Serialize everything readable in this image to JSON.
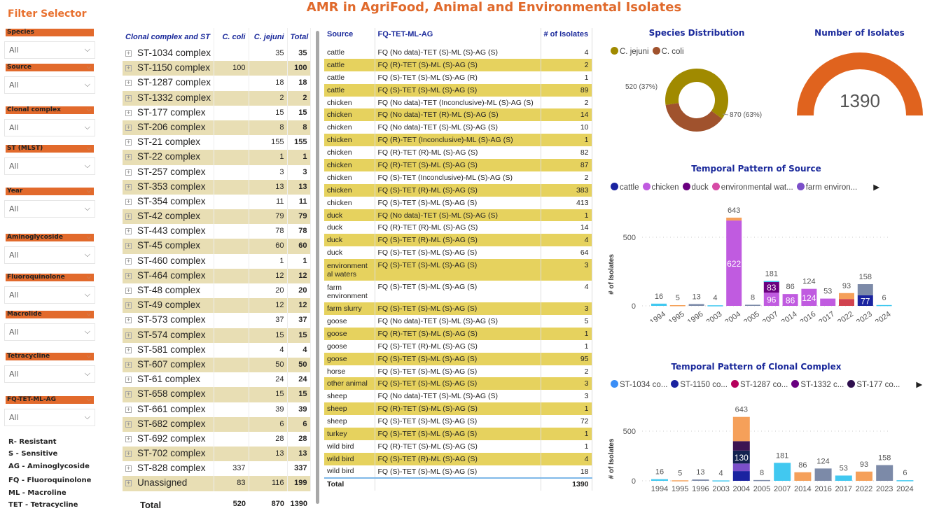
{
  "title": "AMR in AgriFood, Animal and Environmental Isolates",
  "filters": {
    "title": "Filter Selector",
    "items": [
      {
        "label": "Species",
        "value": "All"
      },
      {
        "label": "Source",
        "value": "All"
      },
      {
        "label": "Clonal complex",
        "value": "All"
      },
      {
        "label": "ST (MLST)",
        "value": "All"
      },
      {
        "label": "Year",
        "value": "All"
      },
      {
        "label": "Aminoglycoside",
        "value": "All"
      },
      {
        "label": "Fluoroquinolone",
        "value": "All"
      },
      {
        "label": "Macrolide",
        "value": "All"
      },
      {
        "label": "Tetracycline",
        "value": "All"
      },
      {
        "label": "FQ-TET-ML-AG",
        "value": "All"
      }
    ]
  },
  "abbrev": [
    "R- Resistant",
    "S - Sensitive",
    "AG - Aminoglycoside",
    "FQ - Fluoroquinolone",
    "ML - Macroline",
    "TET - Tetracycline"
  ],
  "clonal_table": {
    "headers": [
      "Clonal complex and ST",
      "C. coli",
      "C. jejuni",
      "Total"
    ],
    "rows": [
      [
        "ST-1034 complex",
        "",
        "35",
        "35"
      ],
      [
        "ST-1150 complex",
        "100",
        "",
        "100"
      ],
      [
        "ST-1287 complex",
        "",
        "18",
        "18"
      ],
      [
        "ST-1332 complex",
        "",
        "2",
        "2"
      ],
      [
        "ST-177 complex",
        "",
        "15",
        "15"
      ],
      [
        "ST-206 complex",
        "",
        "8",
        "8"
      ],
      [
        "ST-21 complex",
        "",
        "155",
        "155"
      ],
      [
        "ST-22 complex",
        "",
        "1",
        "1"
      ],
      [
        "ST-257 complex",
        "",
        "3",
        "3"
      ],
      [
        "ST-353 complex",
        "",
        "13",
        "13"
      ],
      [
        "ST-354 complex",
        "",
        "11",
        "11"
      ],
      [
        "ST-42 complex",
        "",
        "79",
        "79"
      ],
      [
        "ST-443 complex",
        "",
        "78",
        "78"
      ],
      [
        "ST-45 complex",
        "",
        "60",
        "60"
      ],
      [
        "ST-460 complex",
        "",
        "1",
        "1"
      ],
      [
        "ST-464 complex",
        "",
        "12",
        "12"
      ],
      [
        "ST-48 complex",
        "",
        "20",
        "20"
      ],
      [
        "ST-49 complex",
        "",
        "12",
        "12"
      ],
      [
        "ST-573 complex",
        "",
        "37",
        "37"
      ],
      [
        "ST-574 complex",
        "",
        "15",
        "15"
      ],
      [
        "ST-581 complex",
        "",
        "4",
        "4"
      ],
      [
        "ST-607 complex",
        "",
        "50",
        "50"
      ],
      [
        "ST-61 complex",
        "",
        "24",
        "24"
      ],
      [
        "ST-658 complex",
        "",
        "15",
        "15"
      ],
      [
        "ST-661 complex",
        "",
        "39",
        "39"
      ],
      [
        "ST-682 complex",
        "",
        "6",
        "6"
      ],
      [
        "ST-692 complex",
        "",
        "28",
        "28"
      ],
      [
        "ST-702 complex",
        "",
        "13",
        "13"
      ],
      [
        "ST-828 complex",
        "337",
        "",
        "337"
      ],
      [
        "Unassigned",
        "83",
        "116",
        "199"
      ]
    ],
    "total": [
      "Total",
      "520",
      "870",
      "1390"
    ]
  },
  "source_table": {
    "headers": [
      "Source",
      "FQ-TET-ML-AG",
      "# of Isolates"
    ],
    "rows": [
      [
        "cattle",
        "FQ (No data)-TET (S)-ML (S)-AG (S)",
        "4"
      ],
      [
        "cattle",
        "FQ (R)-TET (S)-ML (S)-AG (S)",
        "2"
      ],
      [
        "cattle",
        "FQ (S)-TET (S)-ML (S)-AG (R)",
        "1"
      ],
      [
        "cattle",
        "FQ (S)-TET (S)-ML (S)-AG (S)",
        "89"
      ],
      [
        "chicken",
        "FQ (No data)-TET (Inconclusive)-ML (S)-AG (S)",
        "2"
      ],
      [
        "chicken",
        "FQ (No data)-TET (R)-ML (S)-AG (S)",
        "14"
      ],
      [
        "chicken",
        "FQ (No data)-TET (S)-ML (S)-AG (S)",
        "10"
      ],
      [
        "chicken",
        "FQ (R)-TET (Inconclusive)-ML (S)-AG (S)",
        "1"
      ],
      [
        "chicken",
        "FQ (R)-TET (R)-ML (S)-AG (S)",
        "82"
      ],
      [
        "chicken",
        "FQ (R)-TET (S)-ML (S)-AG (S)",
        "87"
      ],
      [
        "chicken",
        "FQ (S)-TET (Inconclusive)-ML (S)-AG (S)",
        "2"
      ],
      [
        "chicken",
        "FQ (S)-TET (R)-ML (S)-AG (S)",
        "383"
      ],
      [
        "chicken",
        "FQ (S)-TET (S)-ML (S)-AG (S)",
        "413"
      ],
      [
        "duck",
        "FQ (No data)-TET (S)-ML (S)-AG (S)",
        "1"
      ],
      [
        "duck",
        "FQ (R)-TET (R)-ML (S)-AG (S)",
        "14"
      ],
      [
        "duck",
        "FQ (S)-TET (R)-ML (S)-AG (S)",
        "4"
      ],
      [
        "duck",
        "FQ (S)-TET (S)-ML (S)-AG (S)",
        "64"
      ],
      [
        "environmental waters",
        "FQ (S)-TET (S)-ML (S)-AG (S)",
        "3"
      ],
      [
        "farm environment",
        "FQ (S)-TET (S)-ML (S)-AG (S)",
        "4"
      ],
      [
        "farm slurry",
        "FQ (S)-TET (S)-ML (S)-AG (S)",
        "3"
      ],
      [
        "goose",
        "FQ (No data)-TET (S)-ML (S)-AG (S)",
        "5"
      ],
      [
        "goose",
        "FQ (R)-TET (S)-ML (S)-AG (S)",
        "1"
      ],
      [
        "goose",
        "FQ (S)-TET (R)-ML (S)-AG (S)",
        "1"
      ],
      [
        "goose",
        "FQ (S)-TET (S)-ML (S)-AG (S)",
        "95"
      ],
      [
        "horse",
        "FQ (S)-TET (S)-ML (S)-AG (S)",
        "2"
      ],
      [
        "other animal",
        "FQ (S)-TET (S)-ML (S)-AG (S)",
        "3"
      ],
      [
        "sheep",
        "FQ (No data)-TET (S)-ML (S)-AG (S)",
        "3"
      ],
      [
        "sheep",
        "FQ (R)-TET (S)-ML (S)-AG (S)",
        "1"
      ],
      [
        "sheep",
        "FQ (S)-TET (S)-ML (S)-AG (S)",
        "72"
      ],
      [
        "turkey",
        "FQ (S)-TET (S)-ML (S)-AG (S)",
        "1"
      ],
      [
        "wild bird",
        "FQ (R)-TET (S)-ML (S)-AG (S)",
        "1"
      ],
      [
        "wild bird",
        "FQ (S)-TET (R)-ML (S)-AG (S)",
        "4"
      ],
      [
        "wild bird",
        "FQ (S)-TET (S)-ML (S)-AG (S)",
        "18"
      ]
    ],
    "total": [
      "Total",
      "",
      "1390"
    ]
  },
  "colors": {
    "accent": "#E06A2C",
    "header_text": "#1B2A9B",
    "alt_row_clonal": "#E8DEB4",
    "alt_row_source": "#E6D25E"
  },
  "chart_data": [
    {
      "type": "pie",
      "title": "Species Distribution",
      "donut": true,
      "slices": [
        {
          "name": "C. jejuni",
          "value": 870,
          "label": "870 (63%)",
          "color": "#A08A00"
        },
        {
          "name": "C. coli",
          "value": 520,
          "label": "520 (37%)",
          "color": "#A0522D"
        }
      ],
      "legend": "top-left"
    },
    {
      "type": "gauge",
      "title": "Number of Isolates",
      "value": 1390,
      "label": "1390",
      "fill_fraction": 1.0,
      "color": "#E0631E"
    },
    {
      "type": "bar",
      "stacked": true,
      "title": "Temporal Pattern of Source",
      "ylabel": "# of Isolates",
      "yticks": [
        0,
        500
      ],
      "ylim": [
        0,
        650
      ],
      "grid": true,
      "legend": "top",
      "legend_entries": [
        {
          "name": "cattle",
          "color": "#1A23A0"
        },
        {
          "name": "chicken",
          "color": "#C05BE0"
        },
        {
          "name": "duck",
          "color": "#6A0080"
        },
        {
          "name": "environmental wat...",
          "color": "#D64BA6"
        },
        {
          "name": "farm environ...",
          "color": "#7B4FC9"
        }
      ],
      "categories": [
        "1994",
        "1995",
        "1996",
        "2003",
        "2004",
        "2005",
        "2007",
        "2014",
        "2016",
        "2017",
        "2022",
        "2023",
        "2024"
      ],
      "totals": [
        16,
        5,
        13,
        4,
        643,
        8,
        181,
        86,
        124,
        53,
        93,
        158,
        6
      ],
      "segments": [
        {
          "name": "cattle",
          "color": "#1A23A0",
          "values": [
            null,
            null,
            null,
            null,
            null,
            null,
            null,
            null,
            null,
            null,
            null,
            77,
            null
          ]
        },
        {
          "name": "chicken",
          "color": "#C05BE0",
          "values": [
            null,
            null,
            null,
            null,
            622,
            null,
            96,
            86,
            124,
            53,
            null,
            null,
            null
          ]
        },
        {
          "name": "duck",
          "color": "#6A0080",
          "values": [
            null,
            null,
            null,
            null,
            null,
            null,
            83,
            null,
            null,
            null,
            null,
            null,
            null
          ]
        },
        {
          "name": "",
          "color": "#D1434F",
          "values": [
            null,
            null,
            null,
            null,
            null,
            null,
            null,
            null,
            null,
            null,
            50,
            null,
            null
          ]
        }
      ]
    },
    {
      "type": "bar",
      "stacked": true,
      "title": "Temporal Pattern of Clonal Complex",
      "ylabel": "# of Isolates",
      "yticks": [
        0,
        500
      ],
      "ylim": [
        0,
        650
      ],
      "grid": true,
      "legend": "top",
      "legend_entries": [
        {
          "name": "ST-1034 co...",
          "color": "#3A8EF6"
        },
        {
          "name": "ST-1150 co...",
          "color": "#1A23A0"
        },
        {
          "name": "ST-1287 co...",
          "color": "#B5005C"
        },
        {
          "name": "ST-1332 c...",
          "color": "#6A0080"
        },
        {
          "name": "ST-177 co...",
          "color": "#2E0F4D"
        }
      ],
      "categories": [
        "1994",
        "1995",
        "1996",
        "2003",
        "2004",
        "2005",
        "2007",
        "2014",
        "2016",
        "2017",
        "2022",
        "2023",
        "2024"
      ],
      "totals": [
        16,
        5,
        13,
        4,
        643,
        8,
        181,
        86,
        124,
        53,
        93,
        158,
        6
      ],
      "segments": [
        {
          "name": "ST-1150 complex",
          "color": "#1A23A0",
          "values": [
            null,
            null,
            null,
            null,
            98,
            null,
            null,
            null,
            null,
            null,
            null,
            null,
            null
          ]
        },
        {
          "name": "",
          "color": "#7B4FC9",
          "values": [
            null,
            null,
            null,
            null,
            76,
            null,
            null,
            null,
            null,
            null,
            null,
            null,
            null
          ]
        },
        {
          "name": "",
          "color": "#12224F",
          "values": [
            null,
            null,
            null,
            null,
            130,
            null,
            null,
            null,
            null,
            null,
            null,
            null,
            null
          ]
        },
        {
          "name": "",
          "color": "#3D1452",
          "values": [
            null,
            null,
            null,
            null,
            95,
            null,
            null,
            null,
            null,
            null,
            null,
            null,
            null
          ]
        }
      ]
    }
  ]
}
